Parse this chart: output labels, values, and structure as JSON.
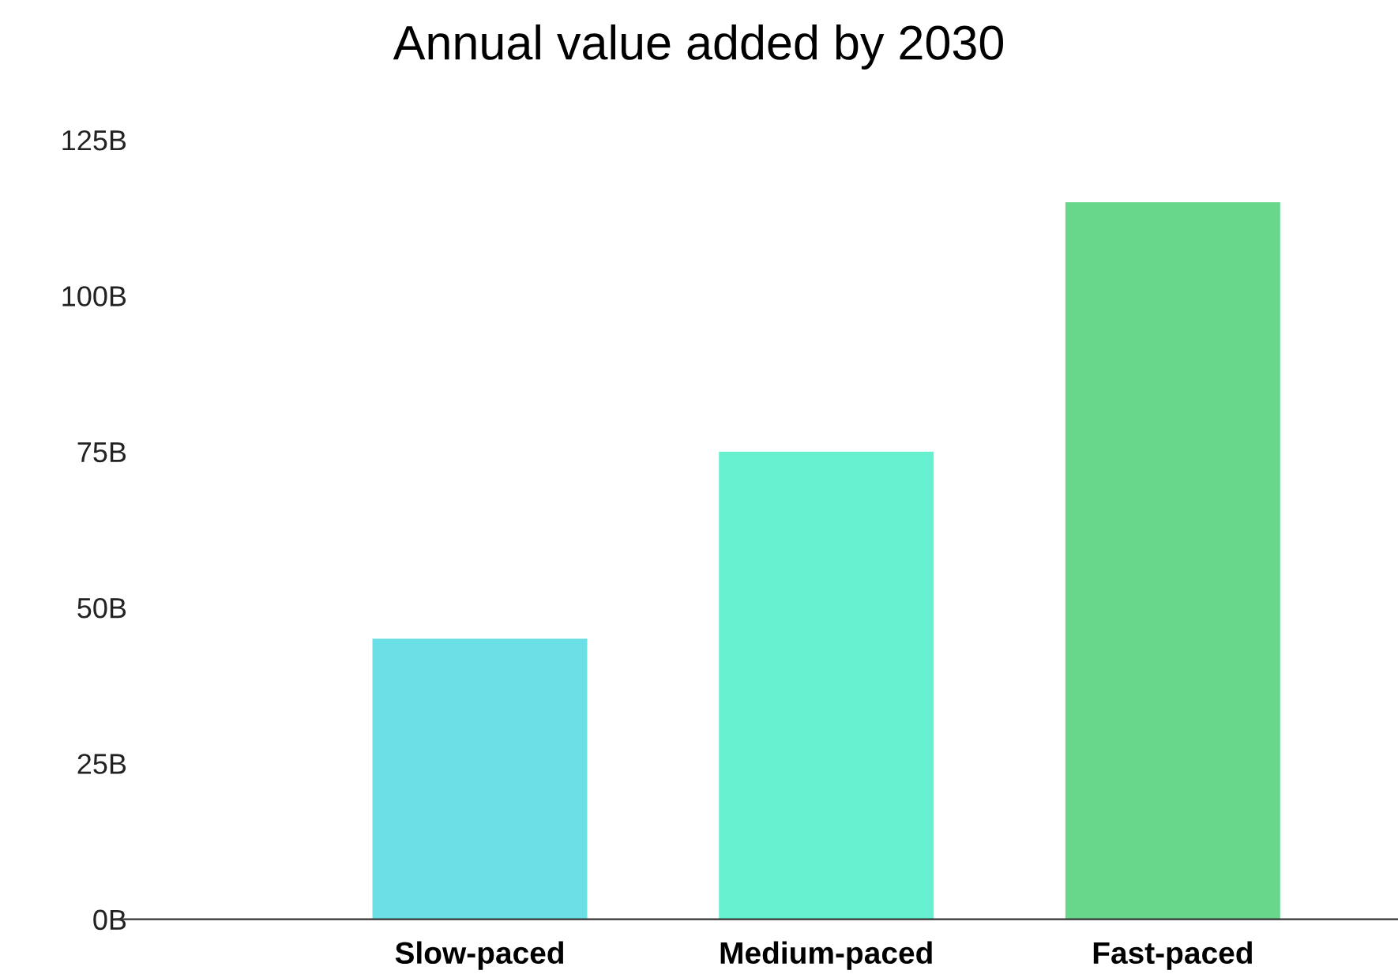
{
  "chart_data": {
    "type": "bar",
    "title": "Annual value added by 2030",
    "categories": [
      "Slow-paced",
      "Medium-paced",
      "Fast-paced"
    ],
    "values": [
      45,
      75,
      115
    ],
    "colors": [
      "#6ae0e6",
      "#66f0cf",
      "#69d78b"
    ],
    "ylim": [
      0,
      125
    ],
    "yticks": [
      {
        "value": 0,
        "label": "0B"
      },
      {
        "value": 25,
        "label": "25B"
      },
      {
        "value": 50,
        "label": "50B"
      },
      {
        "value": 75,
        "label": "75B"
      },
      {
        "value": 100,
        "label": "100B"
      },
      {
        "value": 125,
        "label": "125B"
      }
    ],
    "grid": false,
    "legend": false
  }
}
